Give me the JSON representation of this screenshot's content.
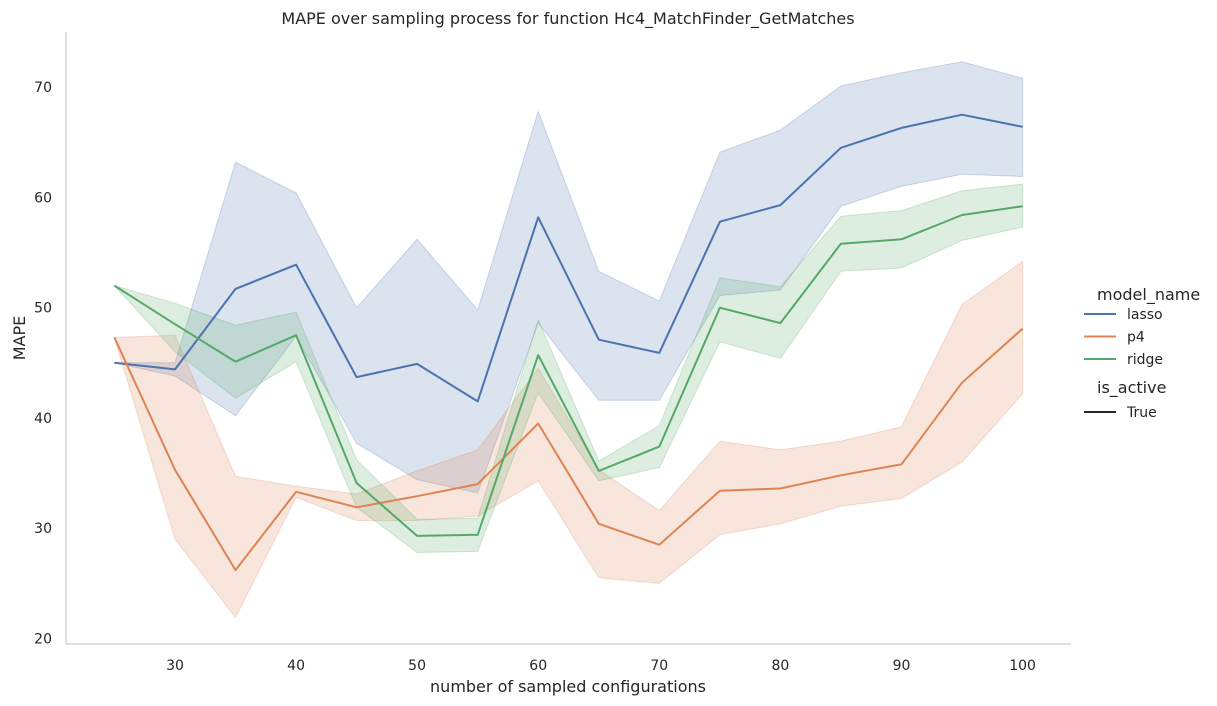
{
  "chart_data": {
    "type": "line",
    "title": "MAPE over sampling process for function Hc4_MatchFinder_GetMatches",
    "xlabel": "number of sampled configurations",
    "ylabel": "MAPE",
    "xlim": [
      21,
      104
    ],
    "ylim": [
      19.5,
      75
    ],
    "xticks": [
      30,
      40,
      50,
      60,
      70,
      80,
      90,
      100
    ],
    "yticks": [
      20,
      30,
      40,
      50,
      60,
      70
    ],
    "grid": false,
    "legend_placement": "right",
    "x": [
      25,
      30,
      35,
      40,
      45,
      50,
      55,
      60,
      65,
      70,
      75,
      80,
      85,
      90,
      95,
      100
    ],
    "series": [
      {
        "name": "lasso",
        "color": "#4c72b0",
        "values": [
          45.0,
          44.4,
          51.7,
          53.9,
          43.7,
          44.9,
          41.5,
          58.2,
          47.1,
          45.9,
          57.8,
          59.3,
          64.5,
          66.3,
          67.5,
          66.4
        ],
        "lower": [
          45.0,
          43.8,
          40.2,
          47.4,
          37.7,
          34.4,
          33.2,
          48.6,
          41.6,
          41.6,
          51.1,
          51.6,
          59.2,
          61.0,
          62.1,
          61.9
        ],
        "upper": [
          45.0,
          45.0,
          63.2,
          60.4,
          50.0,
          56.2,
          49.8,
          67.8,
          53.3,
          50.6,
          64.1,
          66.1,
          70.1,
          71.3,
          72.3,
          70.8
        ]
      },
      {
        "name": "p4",
        "color": "#dd8452",
        "values": [
          47.3,
          35.3,
          26.2,
          33.3,
          31.9,
          32.9,
          34.0,
          39.5,
          30.4,
          28.5,
          33.4,
          33.6,
          34.8,
          35.8,
          43.2,
          48.1
        ],
        "lower": [
          47.3,
          29.0,
          21.9,
          32.8,
          30.7,
          30.7,
          31.1,
          34.3,
          25.5,
          25.0,
          29.4,
          30.4,
          32.0,
          32.7,
          36.0,
          42.2
        ],
        "upper": [
          47.3,
          47.5,
          34.7,
          33.8,
          33.1,
          35.2,
          37.1,
          44.5,
          35.3,
          31.6,
          37.9,
          37.1,
          37.9,
          39.2,
          50.3,
          54.2
        ]
      },
      {
        "name": "ridge",
        "color": "#55a868",
        "values": [
          52.0,
          48.5,
          45.1,
          47.5,
          34.1,
          29.3,
          29.4,
          45.7,
          35.2,
          37.4,
          50.0,
          48.6,
          55.8,
          56.2,
          58.4,
          59.2
        ],
        "lower": [
          52.0,
          46.0,
          41.8,
          45.1,
          31.9,
          27.8,
          27.9,
          42.3,
          34.3,
          35.5,
          46.9,
          45.4,
          53.3,
          53.6,
          56.1,
          57.3
        ],
        "upper": [
          52.0,
          50.4,
          48.4,
          49.6,
          36.2,
          30.8,
          30.9,
          48.9,
          36.1,
          39.3,
          52.7,
          51.9,
          58.3,
          58.8,
          60.6,
          61.2
        ]
      }
    ],
    "legend": {
      "hue_title": "model_name",
      "style_title": "is_active",
      "style_entries": [
        {
          "label": "True",
          "color": "#262626"
        }
      ]
    }
  }
}
